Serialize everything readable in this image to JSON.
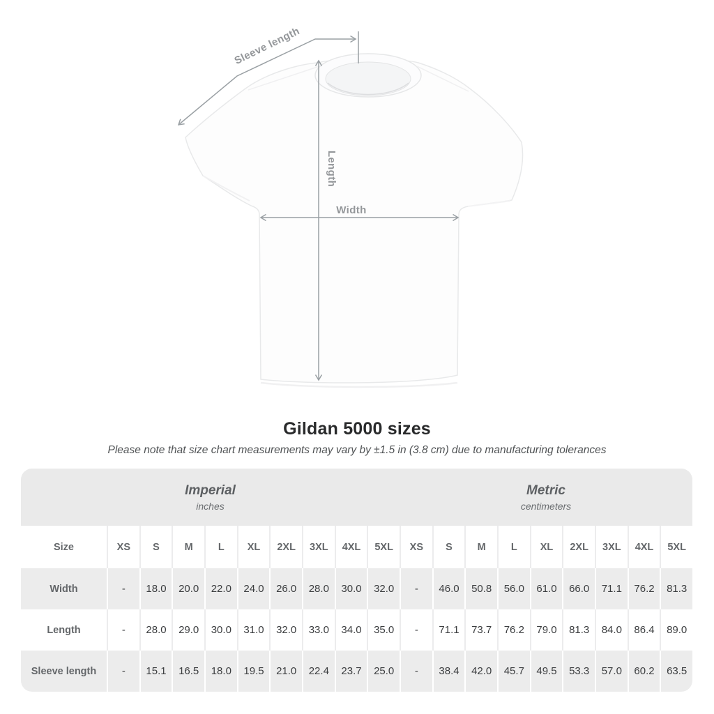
{
  "heading": {
    "title": "Gildan 5000 sizes",
    "note": "Please note that size chart measurements may vary by ±1.5 in (3.8 cm) due to manufacturing tolerances"
  },
  "diagram": {
    "sleeve_length_label": "Sleeve length",
    "length_label": "Length",
    "width_label": "Width"
  },
  "chart_data": {
    "type": "table",
    "title": "Gildan 5000 sizes",
    "unit_groups": [
      {
        "label": "Imperial",
        "sublabel": "inches"
      },
      {
        "label": "Metric",
        "sublabel": "centimeters"
      }
    ],
    "size_label": "Size",
    "sizes": [
      "XS",
      "S",
      "M",
      "L",
      "XL",
      "2XL",
      "3XL",
      "4XL",
      "5XL"
    ],
    "rows": [
      {
        "label": "Width",
        "imperial": [
          "-",
          "18.0",
          "20.0",
          "22.0",
          "24.0",
          "26.0",
          "28.0",
          "30.0",
          "32.0"
        ],
        "metric": [
          "-",
          "46.0",
          "50.8",
          "56.0",
          "61.0",
          "66.0",
          "71.1",
          "76.2",
          "81.3"
        ]
      },
      {
        "label": "Length",
        "imperial": [
          "-",
          "28.0",
          "29.0",
          "30.0",
          "31.0",
          "32.0",
          "33.0",
          "34.0",
          "35.0"
        ],
        "metric": [
          "-",
          "71.1",
          "73.7",
          "76.2",
          "79.0",
          "81.3",
          "84.0",
          "86.4",
          "89.0"
        ]
      },
      {
        "label": "Sleeve length",
        "imperial": [
          "-",
          "15.1",
          "16.5",
          "18.0",
          "19.5",
          "21.0",
          "22.4",
          "23.7",
          "25.0"
        ],
        "metric": [
          "-",
          "38.4",
          "42.0",
          "45.7",
          "49.5",
          "53.3",
          "57.0",
          "60.2",
          "63.5"
        ]
      }
    ]
  },
  "colors": {
    "band_bg": "#eaeaea",
    "shaded_row_bg": "#ececec",
    "arrow": "#9aa0a4",
    "value_text": "#3b3d3f",
    "label_text": "#64676a"
  }
}
